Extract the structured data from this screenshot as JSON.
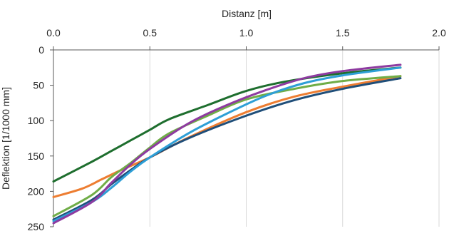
{
  "chart_data": {
    "type": "line",
    "title": "",
    "xlabel": "Distanz [m]",
    "ylabel": "Deflektion [1/1000 mm]",
    "xlim": [
      0,
      2
    ],
    "ylim": [
      0,
      250
    ],
    "y_inverted": true,
    "x_axis_position": "top",
    "xticks": [
      0,
      0.5,
      1,
      1.5,
      2
    ],
    "xtick_labels": [
      "0.0",
      "0.5",
      "1.0",
      "1.5",
      "2.0"
    ],
    "yticks": [
      0,
      50,
      100,
      150,
      200,
      250
    ],
    "ytick_labels": [
      "0",
      "50",
      "100",
      "150",
      "200",
      "250"
    ],
    "grid": "vertical",
    "legend": "none",
    "series": [
      {
        "color": "#1E6E2E",
        "points": [
          [
            0,
            186
          ],
          [
            0.2,
            158
          ],
          [
            0.3,
            143
          ],
          [
            0.4,
            128
          ],
          [
            0.5,
            113
          ],
          [
            0.6,
            98
          ],
          [
            0.8,
            78
          ],
          [
            1.0,
            58
          ],
          [
            1.2,
            45
          ],
          [
            1.5,
            33
          ],
          [
            1.8,
            25
          ]
        ]
      },
      {
        "color": "#ED7D31",
        "points": [
          [
            0,
            208
          ],
          [
            0.15,
            196
          ],
          [
            0.25,
            183
          ],
          [
            0.35,
            170
          ],
          [
            0.5,
            152
          ],
          [
            0.7,
            124
          ],
          [
            1.0,
            88
          ],
          [
            1.25,
            66
          ],
          [
            1.5,
            52
          ],
          [
            1.8,
            37
          ]
        ]
      },
      {
        "color": "#70AD47",
        "points": [
          [
            0,
            235
          ],
          [
            0.2,
            205
          ],
          [
            0.3,
            180
          ],
          [
            0.4,
            160
          ],
          [
            0.5,
            138
          ],
          [
            0.6,
            118
          ],
          [
            0.8,
            93
          ],
          [
            1.0,
            70
          ],
          [
            1.25,
            55
          ],
          [
            1.5,
            44
          ],
          [
            1.8,
            37
          ]
        ]
      },
      {
        "color": "#1F4E79",
        "points": [
          [
            0,
            240
          ],
          [
            0.2,
            212
          ],
          [
            0.3,
            190
          ],
          [
            0.4,
            170
          ],
          [
            0.5,
            152
          ],
          [
            0.7,
            125
          ],
          [
            1.0,
            93
          ],
          [
            1.25,
            71
          ],
          [
            1.5,
            55
          ],
          [
            1.8,
            40
          ]
        ]
      },
      {
        "color": "#2E9FD6",
        "points": [
          [
            0,
            242
          ],
          [
            0.2,
            215
          ],
          [
            0.3,
            195
          ],
          [
            0.4,
            172
          ],
          [
            0.5,
            152
          ],
          [
            0.7,
            118
          ],
          [
            0.9,
            90
          ],
          [
            1.1,
            65
          ],
          [
            1.3,
            47
          ],
          [
            1.5,
            36
          ],
          [
            1.8,
            25
          ]
        ]
      },
      {
        "color": "#8E3BA0",
        "points": [
          [
            0,
            245
          ],
          [
            0.2,
            215
          ],
          [
            0.3,
            188
          ],
          [
            0.4,
            162
          ],
          [
            0.5,
            140
          ],
          [
            0.7,
            104
          ],
          [
            0.9,
            78
          ],
          [
            1.1,
            57
          ],
          [
            1.3,
            40
          ],
          [
            1.5,
            30
          ],
          [
            1.8,
            21
          ]
        ]
      }
    ]
  }
}
